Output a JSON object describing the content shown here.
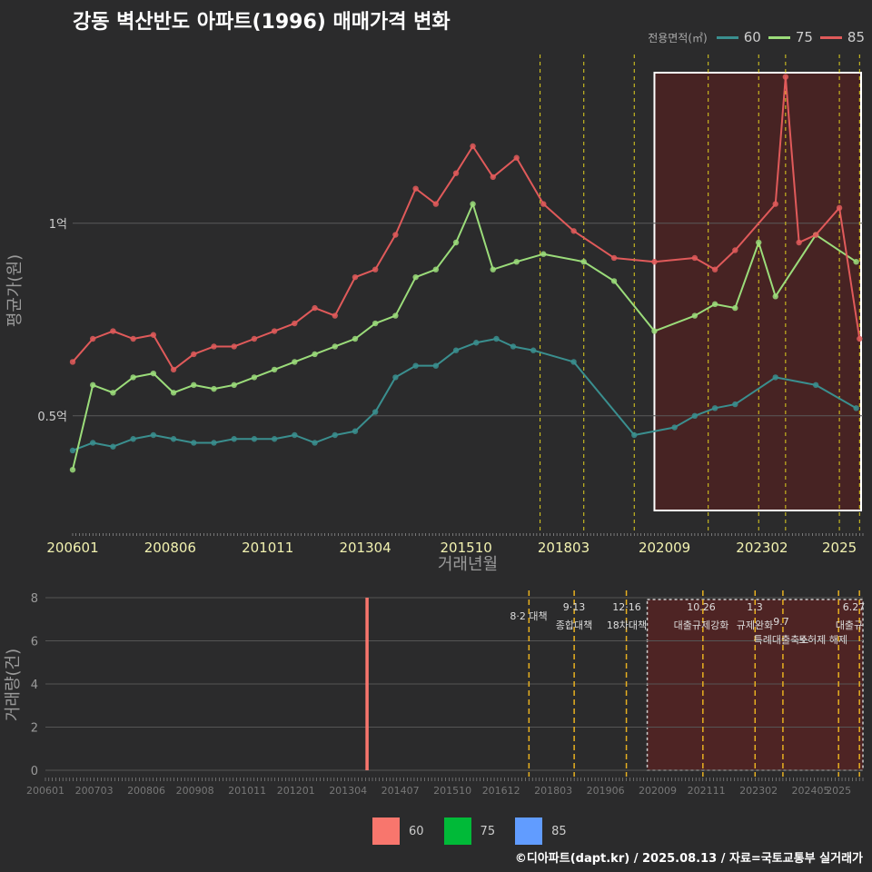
{
  "title": "강동 벽산반도 아파트(1996) 매매가격 변화",
  "legend": {
    "title": "전용면적(㎡)",
    "items": [
      {
        "label": "60",
        "color": "#3a8f8f"
      },
      {
        "label": "75",
        "color": "#9bdc7a"
      },
      {
        "label": "85",
        "color": "#e05a5a"
      }
    ]
  },
  "bar_legend": [
    {
      "label": "60",
      "color": "#f8766d"
    },
    {
      "label": "75",
      "color": "#00ba38"
    },
    {
      "label": "85",
      "color": "#619cff"
    }
  ],
  "credit": "©디아파트(dapt.kr) / 2025.08.13 / 자료=국토교통부 실거래가",
  "chart_data": [
    {
      "type": "line",
      "xlabel": "거래년월",
      "ylabel": "평균가(원)",
      "x_ticks": [
        "200601",
        "200806",
        "201011",
        "201304",
        "201510",
        "201803",
        "202009",
        "202302",
        "2025"
      ],
      "y_ticks": [
        {
          "value": 0.5,
          "label": "0.5억"
        },
        {
          "value": 1.0,
          "label": "1억"
        }
      ],
      "ylim": [
        0.2,
        1.45
      ],
      "x_range": [
        "2006-01",
        "2025-08"
      ],
      "vlines": [
        "2017-08",
        "2018-09",
        "2019-12",
        "2021-10",
        "2023-01",
        "2023-09",
        "2025-01",
        "2025-07"
      ],
      "highlight": {
        "start": "2020-06",
        "end": "2025-08"
      },
      "series": [
        {
          "name": "60",
          "color": "#3a8f8f",
          "values": [
            [
              "2006-01",
              0.41
            ],
            [
              "2006-07",
              0.43
            ],
            [
              "2007-01",
              0.42
            ],
            [
              "2007-07",
              0.44
            ],
            [
              "2008-01",
              0.45
            ],
            [
              "2008-07",
              0.44
            ],
            [
              "2009-01",
              0.43
            ],
            [
              "2009-07",
              0.43
            ],
            [
              "2010-01",
              0.44
            ],
            [
              "2010-07",
              0.44
            ],
            [
              "2011-01",
              0.44
            ],
            [
              "2011-07",
              0.45
            ],
            [
              "2012-01",
              0.43
            ],
            [
              "2012-07",
              0.45
            ],
            [
              "2013-01",
              0.46
            ],
            [
              "2013-07",
              0.51
            ],
            [
              "2014-01",
              0.6
            ],
            [
              "2014-07",
              0.63
            ],
            [
              "2015-01",
              0.63
            ],
            [
              "2015-07",
              0.67
            ],
            [
              "2016-01",
              0.69
            ],
            [
              "2016-07",
              0.7
            ],
            [
              "2016-12",
              0.68
            ],
            [
              "2017-06",
              0.67
            ],
            [
              "2018-06",
              0.64
            ],
            [
              "2019-12",
              0.45
            ],
            [
              "2020-12",
              0.47
            ],
            [
              "2021-06",
              0.5
            ],
            [
              "2021-12",
              0.52
            ],
            [
              "2022-06",
              0.53
            ],
            [
              "2023-06",
              0.6
            ],
            [
              "2024-06",
              0.58
            ],
            [
              "2025-06",
              0.52
            ]
          ]
        },
        {
          "name": "75",
          "color": "#9bdc7a",
          "values": [
            [
              "2006-01",
              0.36
            ],
            [
              "2006-07",
              0.58
            ],
            [
              "2007-01",
              0.56
            ],
            [
              "2007-07",
              0.6
            ],
            [
              "2008-01",
              0.61
            ],
            [
              "2008-07",
              0.56
            ],
            [
              "2009-01",
              0.58
            ],
            [
              "2009-07",
              0.57
            ],
            [
              "2010-01",
              0.58
            ],
            [
              "2010-07",
              0.6
            ],
            [
              "2011-01",
              0.62
            ],
            [
              "2011-07",
              0.64
            ],
            [
              "2012-01",
              0.66
            ],
            [
              "2012-07",
              0.68
            ],
            [
              "2013-01",
              0.7
            ],
            [
              "2013-07",
              0.74
            ],
            [
              "2014-01",
              0.76
            ],
            [
              "2014-07",
              0.86
            ],
            [
              "2015-01",
              0.88
            ],
            [
              "2015-07",
              0.95
            ],
            [
              "2015-12",
              1.05
            ],
            [
              "2016-06",
              0.88
            ],
            [
              "2017-01",
              0.9
            ],
            [
              "2017-09",
              0.92
            ],
            [
              "2018-09",
              0.9
            ],
            [
              "2019-06",
              0.85
            ],
            [
              "2020-06",
              0.72
            ],
            [
              "2021-06",
              0.76
            ],
            [
              "2021-12",
              0.79
            ],
            [
              "2022-06",
              0.78
            ],
            [
              "2023-01",
              0.95
            ],
            [
              "2023-06",
              0.81
            ],
            [
              "2024-06",
              0.97
            ],
            [
              "2025-06",
              0.9
            ]
          ]
        },
        {
          "name": "85",
          "color": "#e05a5a",
          "values": [
            [
              "2006-01",
              0.64
            ],
            [
              "2006-07",
              0.7
            ],
            [
              "2007-01",
              0.72
            ],
            [
              "2007-07",
              0.7
            ],
            [
              "2008-01",
              0.71
            ],
            [
              "2008-07",
              0.62
            ],
            [
              "2009-01",
              0.66
            ],
            [
              "2009-07",
              0.68
            ],
            [
              "2010-01",
              0.68
            ],
            [
              "2010-07",
              0.7
            ],
            [
              "2011-01",
              0.72
            ],
            [
              "2011-07",
              0.74
            ],
            [
              "2012-01",
              0.78
            ],
            [
              "2012-07",
              0.76
            ],
            [
              "2013-01",
              0.86
            ],
            [
              "2013-07",
              0.88
            ],
            [
              "2014-01",
              0.97
            ],
            [
              "2014-07",
              1.09
            ],
            [
              "2015-01",
              1.05
            ],
            [
              "2015-07",
              1.13
            ],
            [
              "2015-12",
              1.2
            ],
            [
              "2016-06",
              1.12
            ],
            [
              "2017-01",
              1.17
            ],
            [
              "2017-09",
              1.05
            ],
            [
              "2018-06",
              0.98
            ],
            [
              "2019-06",
              0.91
            ],
            [
              "2020-06",
              0.9
            ],
            [
              "2021-06",
              0.91
            ],
            [
              "2021-12",
              0.88
            ],
            [
              "2022-06",
              0.93
            ],
            [
              "2023-06",
              1.05
            ],
            [
              "2023-09",
              1.38
            ],
            [
              "2024-01",
              0.95
            ],
            [
              "2024-06",
              0.97
            ],
            [
              "2025-01",
              1.04
            ],
            [
              "2025-07",
              0.7
            ]
          ]
        }
      ]
    },
    {
      "type": "bar",
      "ylabel": "거래량(건)",
      "ylim": [
        0,
        8
      ],
      "y_ticks": [
        0,
        2,
        4,
        6,
        8
      ],
      "x_ticks": [
        "200601",
        "200703",
        "200806",
        "200908",
        "201011",
        "201201",
        "201304",
        "201407",
        "201510",
        "201612",
        "201803",
        "201906",
        "202009",
        "202111",
        "202302",
        "202405",
        "2025"
      ],
      "max_value": 8,
      "vlines": [
        "2017-08",
        "2018-09",
        "2019-12",
        "2021-10",
        "2023-01",
        "2023-09",
        "2025-01",
        "2025-07"
      ],
      "highlight": {
        "start": "2020-06",
        "end": "2025-08"
      },
      "annotations": [
        {
          "date": "2017-08",
          "text": "8·2 대책"
        },
        {
          "date": "2018-09",
          "text": "9·13"
        },
        {
          "date": "2018-09",
          "text": "종합대책"
        },
        {
          "date": "2019-12",
          "text": "12·16"
        },
        {
          "date": "2019-12",
          "text": "18차대책"
        },
        {
          "date": "2021-10",
          "text": "10.26"
        },
        {
          "date": "2021-10",
          "text": "대출규제강화"
        },
        {
          "date": "2023-01",
          "text": "1.3"
        },
        {
          "date": "2023-01",
          "text": "규제완화"
        },
        {
          "date": "2023-09",
          "text": "9.7"
        },
        {
          "date": "2023-09",
          "text": "특례대출축소"
        },
        {
          "date": "2025-01",
          "text": "토허제 해제"
        },
        {
          "date": "2025-07",
          "text": "6.27"
        },
        {
          "date": "2025-07",
          "text": "대출규"
        }
      ]
    }
  ]
}
